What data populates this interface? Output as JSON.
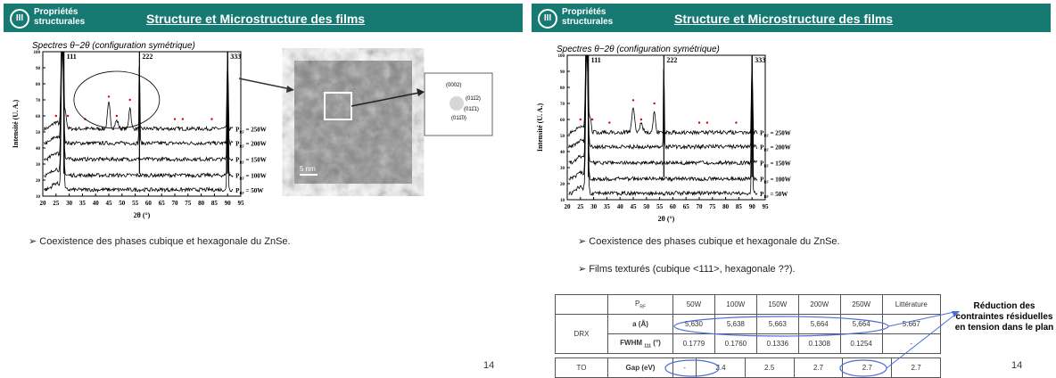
{
  "slides": [
    {
      "header": {
        "section": "III",
        "label": "Propriétés structurales",
        "title": "Structure et Microstructure des films"
      },
      "figure": {
        "caption": "Spectres θ−2θ (configuration symétrique)",
        "y_label": "Intensité (U. A.)",
        "x_label": "2θ (°)",
        "yticks": [
          "10",
          "20",
          "30",
          "40",
          "50",
          "60",
          "70",
          "80",
          "90",
          "100"
        ],
        "xticks": [
          "20",
          "25",
          "30",
          "35",
          "40",
          "45",
          "50",
          "55",
          "60",
          "65",
          "70",
          "75",
          "80",
          "85",
          "90",
          "95"
        ],
        "peaks": [
          "111",
          "222",
          "333"
        ],
        "series": [
          {
            "symbol": "P",
            "sub": "RF",
            "power": " = 250W"
          },
          {
            "symbol": "P",
            "sub": "RF",
            "power": " = 200W"
          },
          {
            "symbol": "P",
            "sub": "RF",
            "power": " = 150W"
          },
          {
            "symbol": "P",
            "sub": "RF",
            "power": " = 100W"
          },
          {
            "symbol": "P",
            "sub": "RF",
            "power": " = 50W"
          }
        ]
      },
      "tem": {
        "scale": "5 nm",
        "spots": [
          "(0002)",
          "(011̄2)",
          "(011̄1)",
          "(011̄0)"
        ]
      },
      "bullets": [
        "➢ Coexistence des phases cubique et hexagonale du ZnSe."
      ],
      "page": "14"
    },
    {
      "header": {
        "section": "III",
        "label": "Propriétés structurales",
        "title": "Structure et Microstructure des films"
      },
      "figure": {
        "caption": "Spectres θ−2θ (configuration symétrique)",
        "y_label": "Intensité (U. A.)",
        "x_label": "2θ (°)",
        "yticks": [
          "10",
          "20",
          "30",
          "40",
          "50",
          "60",
          "70",
          "80",
          "90",
          "100"
        ],
        "xticks": [
          "20",
          "25",
          "30",
          "35",
          "40",
          "45",
          "50",
          "55",
          "60",
          "65",
          "70",
          "75",
          "80",
          "85",
          "90",
          "95"
        ],
        "peaks": [
          "111",
          "222",
          "333"
        ],
        "series": [
          {
            "symbol": "P",
            "sub": "RF",
            "power": " = 250W"
          },
          {
            "symbol": "P",
            "sub": "RF",
            "power": " = 200W"
          },
          {
            "symbol": "P",
            "sub": "RF",
            "power": " = 150W"
          },
          {
            "symbol": "P",
            "sub": "RF",
            "power": " = 100W"
          },
          {
            "symbol": "P",
            "sub": "RF",
            "power": " = 50W"
          }
        ]
      },
      "bullets": [
        "➢ Coexistence des phases cubique et hexagonale du ZnSe.",
        "➢ Films texturés (cubique <111>, hexagonale ??)."
      ],
      "table": {
        "header": [
          {
            "symbol": "P",
            "sub": "RF"
          },
          "50W",
          "100W",
          "150W",
          "200W",
          "250W",
          "Littérature"
        ],
        "group": "DRX",
        "rows": [
          {
            "label": "a (Å)",
            "cells": [
              "5,630",
              "5,638",
              "5,663",
              "5,664",
              "5,664",
              "5.667"
            ]
          },
          {
            "label": {
              "pre": "FWHM ",
              "sub": "111",
              "post": " (°)"
            },
            "cells": [
              "0.1779",
              "0.1760",
              "0.1336",
              "0.1308",
              "0.1254",
              "-"
            ]
          }
        ],
        "gap_group": "TO",
        "gap_row": {
          "label": "Gap (eV)",
          "cells": [
            "-",
            "2.4",
            "2.5",
            "2.7",
            "2.7",
            "2.7"
          ]
        }
      },
      "note": "Réduction des contraintes résiduelles en tension dans le plan",
      "page": "14"
    }
  ]
}
